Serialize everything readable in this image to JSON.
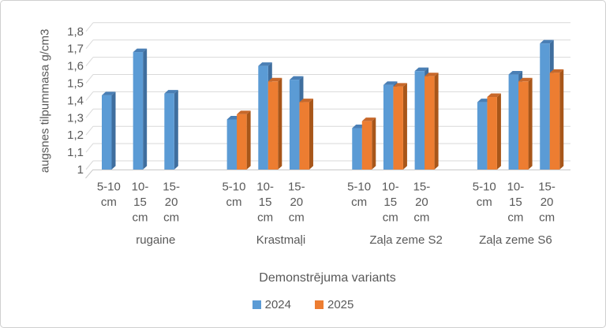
{
  "chart_data": {
    "type": "bar",
    "style": "3d-clustered-column",
    "title": "",
    "ylabel": "augsnes tilpummasa g/cm3",
    "xlabel": "Demonstrējuma variants",
    "ylim": [
      1,
      1.8
    ],
    "ytick_step": 0.1,
    "ytick_labels": [
      "1",
      "1,1",
      "1,2",
      "1,3",
      "1,4",
      "1,5",
      "1,6",
      "1,7",
      "1,8"
    ],
    "grid": true,
    "legend_position": "bottom",
    "legend": [
      "2024",
      "2025"
    ],
    "category_label_lines": [
      [
        "5-10",
        "cm"
      ],
      [
        "10-",
        "15",
        "cm"
      ],
      [
        "15-",
        "20",
        "cm"
      ]
    ],
    "groups": [
      {
        "label": "rugaine",
        "categories": [
          "5-10 cm",
          "10-15 cm",
          "15-20 cm"
        ],
        "series": [
          {
            "name": "2024",
            "values": [
              1.43,
              1.68,
              1.44
            ]
          },
          {
            "name": "2025",
            "values": [
              null,
              null,
              null
            ]
          }
        ]
      },
      {
        "label": "Krastmaļi",
        "categories": [
          "5-10 cm",
          "10-15 cm",
          "15-20 cm"
        ],
        "series": [
          {
            "name": "2024",
            "values": [
              1.29,
              1.6,
              1.52
            ]
          },
          {
            "name": "2025",
            "values": [
              1.32,
              1.51,
              1.39
            ]
          }
        ]
      },
      {
        "label": "Zaļa zeme S2",
        "categories": [
          "5-10 cm",
          "10-15 cm",
          "15-20 cm"
        ],
        "series": [
          {
            "name": "2024",
            "values": [
              1.24,
              1.49,
              1.57
            ]
          },
          {
            "name": "2025",
            "values": [
              1.28,
              1.48,
              1.54
            ]
          }
        ]
      },
      {
        "label": "Zaļa zeme S6",
        "categories": [
          "5-10 cm",
          "10-15 cm",
          "15-20 cm"
        ],
        "series": [
          {
            "name": "2024",
            "values": [
              1.39,
              1.55,
              1.73
            ]
          },
          {
            "name": "2025",
            "values": [
              1.42,
              1.51,
              1.56
            ]
          }
        ]
      }
    ],
    "colors": {
      "2024": {
        "front": "#5B9BD5",
        "top": "#4A7FB5",
        "side": "#3F6E9E"
      },
      "2025": {
        "front": "#ED7D31",
        "top": "#C8682A",
        "side": "#A85619"
      }
    },
    "gridline_color": "#D9D9D9",
    "floor_line_color": "#C9C9C9",
    "text_color": "#595959"
  }
}
